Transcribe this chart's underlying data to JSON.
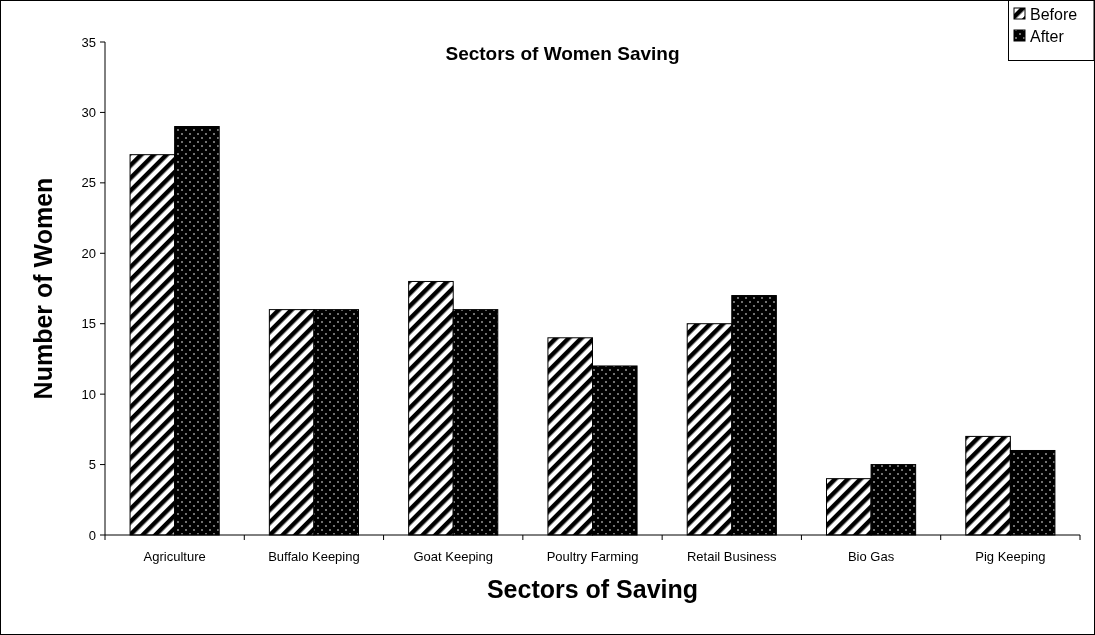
{
  "chart_data": {
    "type": "bar",
    "title": "Sectors of Women Saving",
    "xlabel": "Sectors of Saving",
    "ylabel": "Number of Women",
    "categories": [
      "Agriculture",
      "Buffalo Keeping",
      "Goat Keeping",
      "Poultry Farming",
      "Retail Business",
      "Bio Gas",
      "Pig Keeping"
    ],
    "series": [
      {
        "name": "Before",
        "color": "#000000",
        "values": [
          27,
          16,
          18,
          14,
          15,
          4,
          7
        ]
      },
      {
        "name": "After",
        "color": "#000000",
        "values": [
          29,
          16,
          16,
          12,
          17,
          5,
          6
        ]
      }
    ],
    "ylim": [
      0,
      35
    ],
    "yticks": [
      0,
      5,
      10,
      15,
      20,
      25,
      30,
      35
    ],
    "grid": false,
    "legend": "top right"
  }
}
